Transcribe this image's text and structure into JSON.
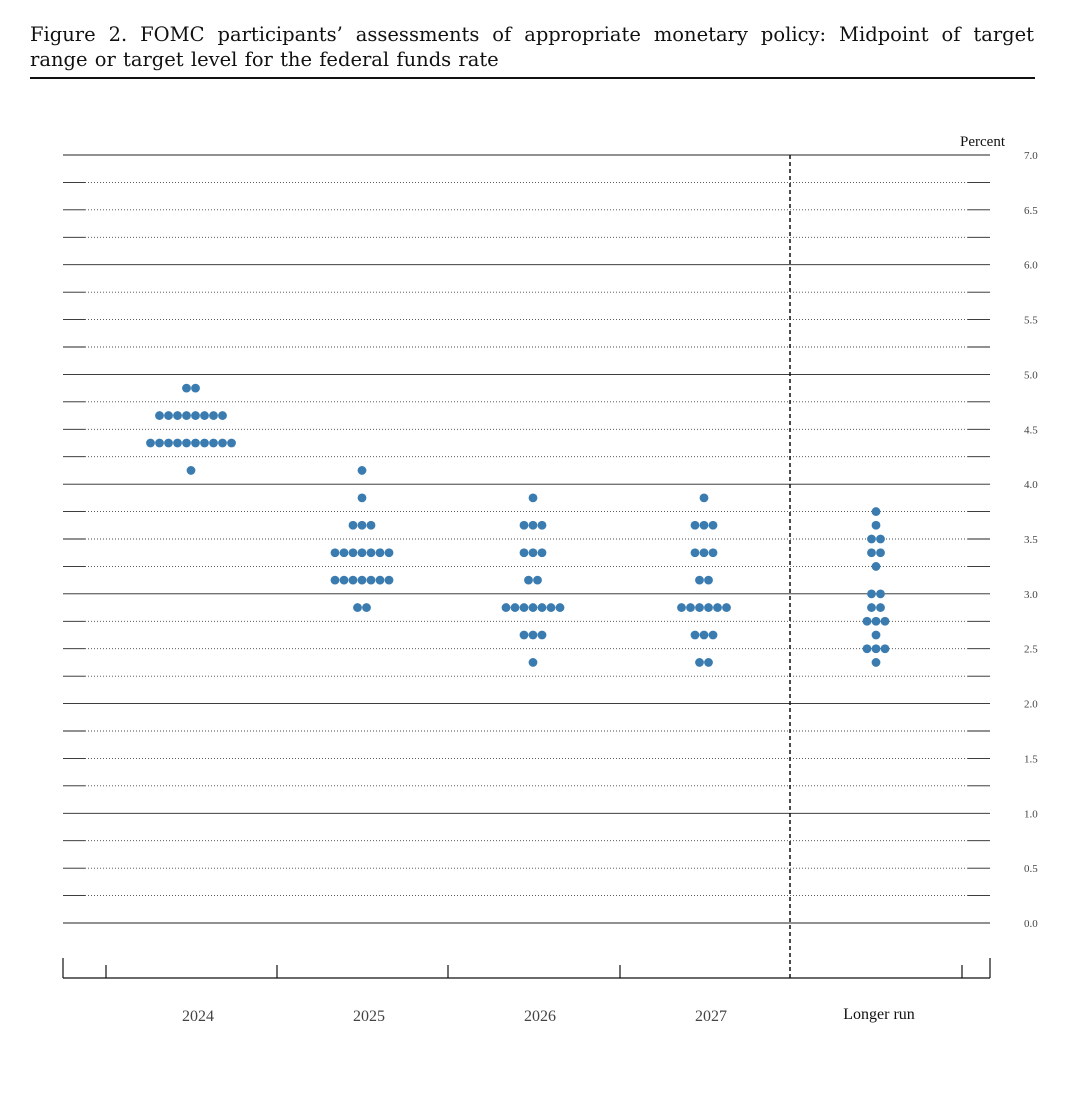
{
  "figure": {
    "title": "Figure 2.  FOMC participants’ assessments of appropriate monetary policy: Midpoint of target range or target level for the federal funds rate"
  },
  "chart_data": {
    "type": "scatter",
    "style": "dot-plot",
    "title": "Figure 2.  FOMC participants’ assessments of appropriate monetary policy: Midpoint of target range or target level for the federal funds rate",
    "ylabel": "Percent",
    "xlabel": "",
    "ylim": [
      0,
      7
    ],
    "yticks": [
      "0.0",
      "0.5",
      "1.0",
      "1.5",
      "2.0",
      "2.5",
      "3.0",
      "3.5",
      "4.0",
      "4.5",
      "5.0",
      "5.5",
      "6.0",
      "6.5",
      "7.0"
    ],
    "categories": [
      "2024",
      "2025",
      "2026",
      "2027",
      "Longer run"
    ],
    "dot_color": "#3a7bb0",
    "grid": true,
    "series": [
      {
        "category": "2024",
        "points": [
          {
            "y": 4.875,
            "count": 2
          },
          {
            "y": 4.625,
            "count": 8
          },
          {
            "y": 4.375,
            "count": 10
          },
          {
            "y": 4.125,
            "count": 1
          }
        ]
      },
      {
        "category": "2025",
        "points": [
          {
            "y": 4.125,
            "count": 1
          },
          {
            "y": 3.875,
            "count": 1
          },
          {
            "y": 3.625,
            "count": 3
          },
          {
            "y": 3.375,
            "count": 7
          },
          {
            "y": 3.125,
            "count": 7
          },
          {
            "y": 2.875,
            "count": 2
          }
        ]
      },
      {
        "category": "2026",
        "points": [
          {
            "y": 3.875,
            "count": 1
          },
          {
            "y": 3.625,
            "count": 3
          },
          {
            "y": 3.375,
            "count": 3
          },
          {
            "y": 3.125,
            "count": 2
          },
          {
            "y": 2.875,
            "count": 7
          },
          {
            "y": 2.625,
            "count": 3
          },
          {
            "y": 2.375,
            "count": 1
          }
        ]
      },
      {
        "category": "2027",
        "points": [
          {
            "y": 3.875,
            "count": 1
          },
          {
            "y": 3.625,
            "count": 3
          },
          {
            "y": 3.375,
            "count": 3
          },
          {
            "y": 3.125,
            "count": 2
          },
          {
            "y": 2.875,
            "count": 6
          },
          {
            "y": 2.625,
            "count": 3
          },
          {
            "y": 2.375,
            "count": 2
          }
        ]
      },
      {
        "category": "Longer run",
        "points": [
          {
            "y": 3.75,
            "count": 1
          },
          {
            "y": 3.625,
            "count": 1
          },
          {
            "y": 3.5,
            "count": 2
          },
          {
            "y": 3.375,
            "count": 2
          },
          {
            "y": 3.25,
            "count": 1
          },
          {
            "y": 3.0,
            "count": 2
          },
          {
            "y": 2.875,
            "count": 2
          },
          {
            "y": 2.75,
            "count": 3
          },
          {
            "y": 2.625,
            "count": 1
          },
          {
            "y": 2.5,
            "count": 3
          },
          {
            "y": 2.375,
            "count": 1
          }
        ]
      }
    ]
  }
}
